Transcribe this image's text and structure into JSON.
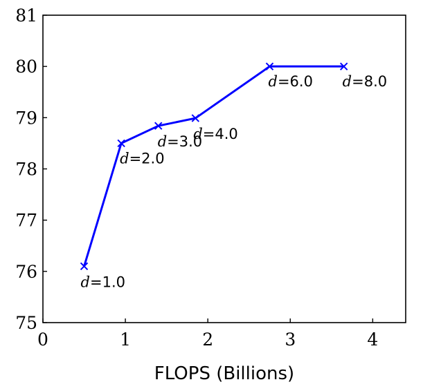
{
  "chart_data": {
    "type": "line",
    "title": "",
    "xlabel": "FLOPS (Billions)",
    "ylabel": "",
    "xlim": [
      0,
      4.4
    ],
    "ylim": [
      75,
      81
    ],
    "xticks": [
      "0",
      "1",
      "2",
      "3",
      "4"
    ],
    "yticks": [
      "75",
      "76",
      "77",
      "78",
      "79",
      "80",
      "81"
    ],
    "grid": false,
    "legend": "none",
    "series": [
      {
        "color": "#0000ff",
        "marker": "x",
        "points": [
          {
            "x": 0.5,
            "y": 76.1,
            "label_var": "d",
            "label_value": "=1.0"
          },
          {
            "x": 0.95,
            "y": 78.5,
            "label_var": "d",
            "label_value": "=2.0"
          },
          {
            "x": 1.4,
            "y": 78.84,
            "label_var": "d",
            "label_value": "=3.0"
          },
          {
            "x": 1.85,
            "y": 78.99,
            "label_var": "d",
            "label_value": "=4.0"
          },
          {
            "x": 2.75,
            "y": 80.0,
            "label_var": "d",
            "label_value": "=6.0"
          },
          {
            "x": 3.65,
            "y": 80.0,
            "label_var": "d",
            "label_value": "=8.0"
          }
        ]
      }
    ]
  }
}
